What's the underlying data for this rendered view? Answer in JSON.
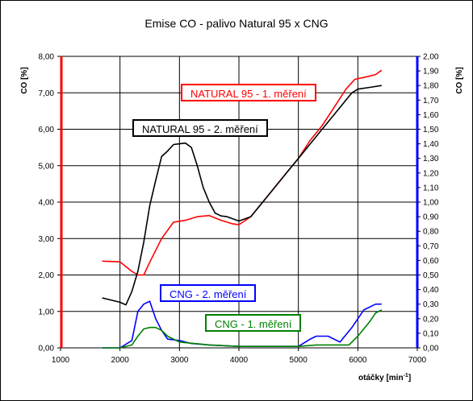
{
  "chart_data": {
    "type": "line",
    "title": "Emise CO - palivo Natural 95 x CNG",
    "xlabel": "otáčky [min-1]",
    "xlabel_main": "otáčky [min",
    "xlabel_sup": "-1",
    "xlabel_end": "]",
    "ylabel_left": "CO [%]",
    "ylabel_right": "CO [%]",
    "xlim": [
      1000,
      7000
    ],
    "ylim_left": [
      0,
      8
    ],
    "ylim_right": [
      0,
      2
    ],
    "x_ticks": [
      "1000",
      "2000",
      "3000",
      "4000",
      "5000",
      "6000",
      "7000"
    ],
    "y_left_ticks": [
      "0,00",
      "1,00",
      "2,00",
      "3,00",
      "4,00",
      "5,00",
      "6,00",
      "7,00",
      "8,00"
    ],
    "y_right_ticks": [
      "0,00",
      "0,10",
      "0,20",
      "0,30",
      "0,40",
      "0,50",
      "0,60",
      "0,70",
      "0,80",
      "0,90",
      "1,00",
      "1,10",
      "1,20",
      "1,30",
      "1,40",
      "1,50",
      "1,60",
      "1,70",
      "1,80",
      "1,90",
      "2,00"
    ],
    "grid": true,
    "colors": {
      "left_axis": "#ff0000",
      "right_axis": "#0000ff"
    },
    "series": [
      {
        "name": "NATURAL 95 - 1. měření",
        "axis": "left",
        "color": "#ff0000",
        "x": [
          1700,
          2000,
          2200,
          2300,
          2400,
          2500,
          2700,
          2900,
          3100,
          3300,
          3500,
          3700,
          3900,
          4000,
          4200,
          4400,
          4600,
          4800,
          5000,
          5200,
          5400,
          5600,
          5800,
          5950,
          6100,
          6300,
          6400
        ],
        "y": [
          2.38,
          2.36,
          2.1,
          2.0,
          2.0,
          2.35,
          3.0,
          3.45,
          3.5,
          3.6,
          3.63,
          3.5,
          3.4,
          3.38,
          3.6,
          4.0,
          4.4,
          4.8,
          5.2,
          5.7,
          6.1,
          6.6,
          7.1,
          7.37,
          7.42,
          7.5,
          7.62
        ]
      },
      {
        "name": "NATURAL 95 - 2. měření",
        "axis": "left",
        "color": "#000000",
        "x": [
          1700,
          2000,
          2100,
          2200,
          2300,
          2400,
          2500,
          2600,
          2700,
          2800,
          2900,
          3000,
          3100,
          3200,
          3300,
          3400,
          3500,
          3600,
          3700,
          3800,
          4000,
          4200,
          4400,
          4600,
          4800,
          5000,
          5200,
          5400,
          5600,
          5800,
          5900,
          6000,
          6200,
          6400
        ],
        "y": [
          1.37,
          1.25,
          1.18,
          1.55,
          2.1,
          2.9,
          3.9,
          4.6,
          5.25,
          5.4,
          5.58,
          5.6,
          5.62,
          5.5,
          5.0,
          4.4,
          4.0,
          3.7,
          3.62,
          3.6,
          3.48,
          3.6,
          4.0,
          4.4,
          4.8,
          5.2,
          5.6,
          6.0,
          6.4,
          6.8,
          7.0,
          7.1,
          7.15,
          7.2
        ]
      },
      {
        "name": "CNG - 2. měření",
        "axis": "right",
        "color": "#0000ff",
        "x": [
          1700,
          2000,
          2200,
          2300,
          2400,
          2500,
          2600,
          2700,
          2800,
          3000,
          3200,
          3500,
          4000,
          4500,
          5000,
          5200,
          5300,
          5500,
          5700,
          5900,
          6100,
          6300,
          6400
        ],
        "y": [
          0.0,
          0.0,
          0.05,
          0.25,
          0.3,
          0.32,
          0.2,
          0.12,
          0.06,
          0.05,
          0.03,
          0.02,
          0.01,
          0.01,
          0.01,
          0.06,
          0.08,
          0.08,
          0.04,
          0.14,
          0.26,
          0.3,
          0.3
        ]
      },
      {
        "name": "CNG - 1. měření",
        "axis": "right",
        "color": "#008000",
        "x": [
          1700,
          2000,
          2200,
          2300,
          2400,
          2500,
          2600,
          2700,
          2800,
          3000,
          3500,
          4000,
          4500,
          5000,
          5300,
          5500,
          5700,
          5850,
          6000,
          6200,
          6300,
          6400
        ],
        "y": [
          0.0,
          0.0,
          0.02,
          0.08,
          0.13,
          0.14,
          0.14,
          0.12,
          0.08,
          0.04,
          0.02,
          0.01,
          0.01,
          0.01,
          0.02,
          0.02,
          0.02,
          0.02,
          0.08,
          0.18,
          0.24,
          0.26
        ]
      }
    ]
  }
}
